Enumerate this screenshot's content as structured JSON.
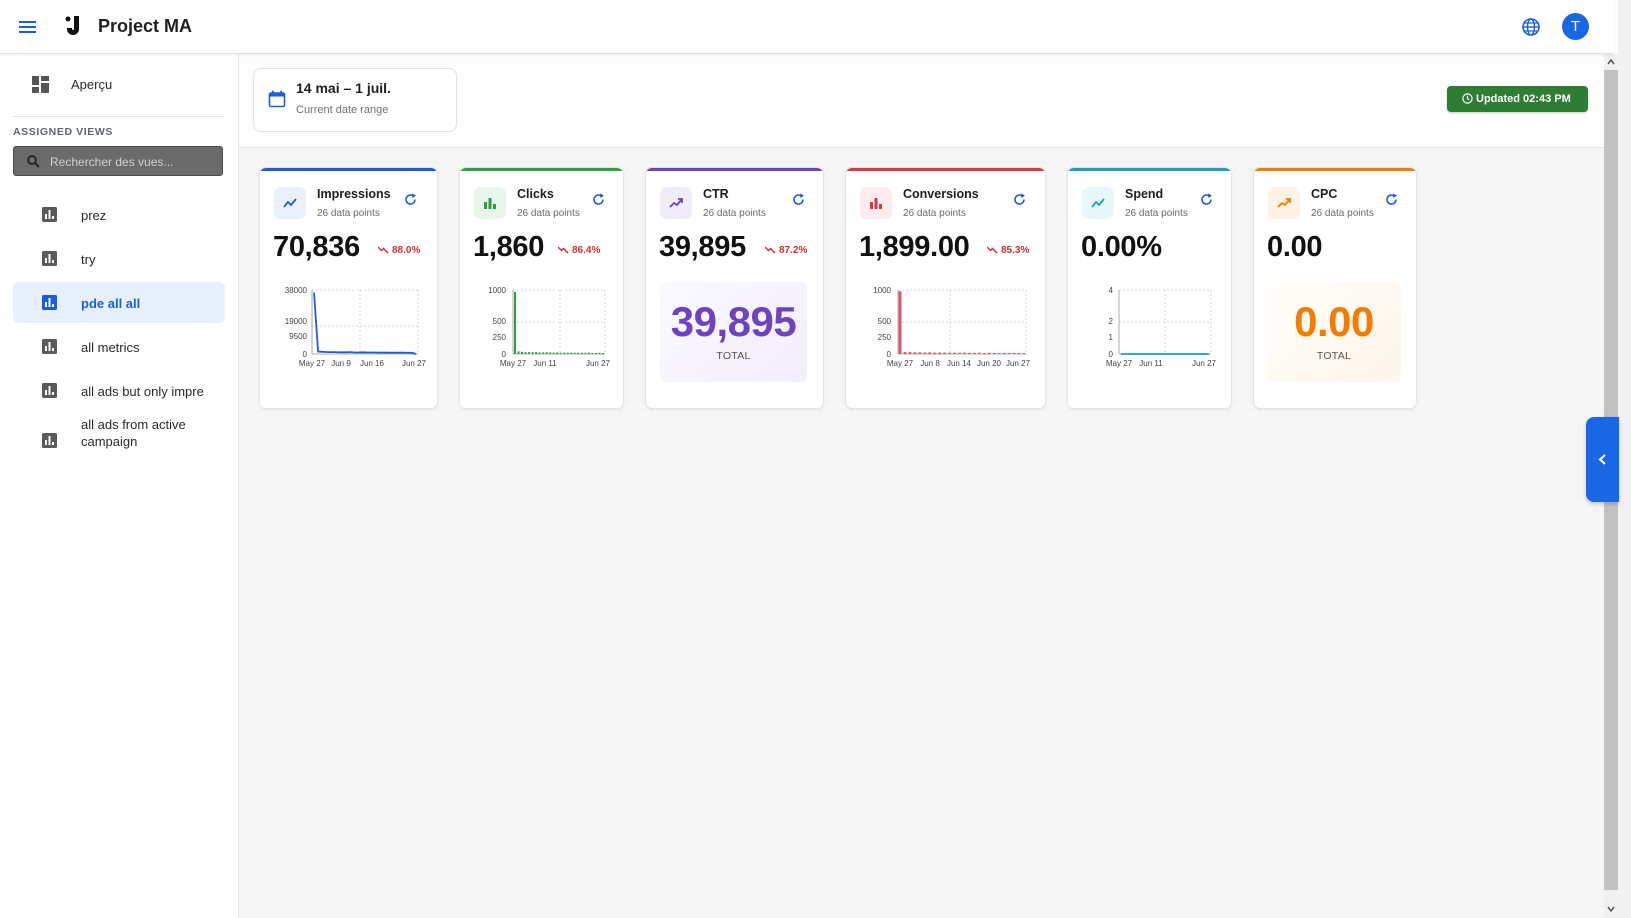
{
  "app": {
    "title": "Project MA",
    "avatar_letter": "T"
  },
  "sidebar": {
    "overview_label": "Aperçu",
    "section_label": "ASSIGNED VIEWS",
    "search_placeholder": "Rechercher des vues...",
    "items": [
      {
        "label": "prez",
        "active": false
      },
      {
        "label": "try",
        "active": false
      },
      {
        "label": "pde all all",
        "active": true
      },
      {
        "label": "all metrics",
        "active": false
      },
      {
        "label": "all ads but only impre",
        "active": false
      },
      {
        "label": "all ads from active campaign",
        "active": false
      }
    ]
  },
  "header": {
    "date_range": "14 mai – 1 juil.",
    "date_sub": "Current date range",
    "updated": "Updated 02:43 PM"
  },
  "cards": [
    {
      "title": "Impressions",
      "sub": "26 data points",
      "value": "70,836",
      "trend": "88.0%",
      "color": "#1a5ed8",
      "chart": {
        "type": "line",
        "y_ticks": [
          "38000",
          "19000",
          "9500",
          "0"
        ],
        "x_ticks": [
          "May 27",
          "Jun 9",
          "Jun 16",
          "Jun 27"
        ]
      }
    },
    {
      "title": "Clicks",
      "sub": "26 data points",
      "value": "1,860",
      "trend": "86.4%",
      "color": "#2ea043",
      "chart": {
        "type": "bar",
        "y_ticks": [
          "1000",
          "500",
          "250",
          "0"
        ],
        "x_ticks": [
          "May 27",
          "Jun 11",
          "Jun 27"
        ]
      }
    },
    {
      "title": "CTR",
      "sub": "26 data points",
      "value": "39,895",
      "total": "39,895",
      "total_label": "TOTAL",
      "color": "#6f42c1"
    },
    {
      "title": "Conversions",
      "sub": "26 data points",
      "value": "1,899.00",
      "trend": "85.3%",
      "color": "#dc3545",
      "chart": {
        "type": "bar",
        "y_ticks": [
          "1000",
          "500",
          "250",
          "0"
        ],
        "x_ticks": [
          "May 27",
          "Jun 8",
          "Jun 14",
          "Jun 20",
          "Jun 27"
        ]
      }
    },
    {
      "title": "Spend",
      "sub": "26 data points",
      "value": "0.00%",
      "color": "#17a2b8",
      "chart": {
        "type": "line",
        "y_ticks": [
          "4",
          "2",
          "1",
          "0"
        ],
        "x_ticks": [
          "May 27",
          "Jun 11",
          "Jun 27"
        ]
      }
    },
    {
      "title": "CPC",
      "sub": "26 data points",
      "value": "0.00",
      "total": "0.00",
      "total_label": "TOTAL",
      "color": "#f57c00"
    }
  ],
  "chart_data": [
    {
      "type": "line",
      "series": [
        {
          "name": "Impressions",
          "values": [
            36500,
            1500,
            1300,
            1200,
            1100,
            1100,
            1000,
            1000,
            1000,
            1100,
            900,
            900,
            1000,
            900,
            900,
            900,
            800,
            900,
            800,
            800,
            800,
            800,
            800,
            700,
            700,
            0
          ]
        }
      ],
      "x_ticks": [
        "May 27",
        "Jun 9",
        "Jun 16",
        "Jun 27"
      ],
      "y_ticks": [
        0,
        9500,
        19000,
        38000
      ]
    },
    {
      "type": "bar",
      "series": [
        {
          "name": "Clicks",
          "values": [
            970,
            40,
            35,
            30,
            30,
            28,
            30,
            25,
            25,
            28,
            25,
            22,
            25,
            20,
            22,
            20,
            20,
            18,
            20,
            18,
            18,
            20,
            15,
            15,
            18,
            15
          ]
        }
      ],
      "x_ticks": [
        "May 27",
        "Jun 11",
        "Jun 27"
      ],
      "y_ticks": [
        0,
        250,
        500,
        1000
      ]
    },
    {
      "type": "bar",
      "series": [
        {
          "name": "Conversions",
          "values": [
            980,
            30,
            28,
            25,
            25,
            22,
            25,
            20,
            22,
            22,
            20,
            20,
            18,
            20,
            18,
            18,
            20,
            16,
            18,
            16,
            15,
            16,
            15,
            15,
            14,
            14
          ]
        }
      ],
      "x_ticks": [
        "May 27",
        "Jun 8",
        "Jun 14",
        "Jun 20",
        "Jun 27"
      ],
      "y_ticks": [
        0,
        250,
        500,
        1000
      ]
    },
    {
      "type": "line",
      "series": [
        {
          "name": "Spend",
          "values": [
            0,
            0,
            0,
            0,
            0,
            0,
            0,
            0,
            0,
            0,
            0,
            0,
            0,
            0,
            0,
            0,
            0,
            0,
            0,
            0,
            0,
            0,
            0,
            0,
            0,
            0
          ]
        }
      ],
      "x_ticks": [
        "May 27",
        "Jun 11",
        "Jun 27"
      ],
      "y_ticks": [
        0,
        1,
        2,
        4
      ]
    }
  ]
}
